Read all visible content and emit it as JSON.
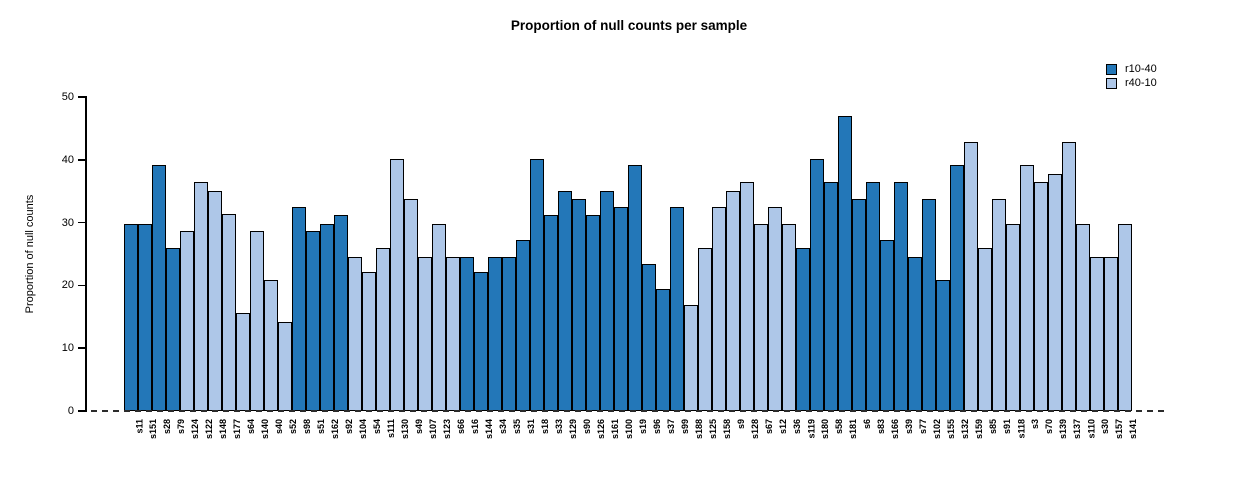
{
  "chart_data": {
    "type": "bar",
    "title": "Proportion of null counts per sample",
    "ylabel": "Proportion of null counts",
    "xlabel": "",
    "ylim": [
      0,
      50
    ],
    "yticks": [
      0,
      10,
      20,
      30,
      40,
      50
    ],
    "grid": false,
    "zero_line_style": "dashed",
    "legend_position": "top-right",
    "legend": [
      {
        "name": "r10-40",
        "color": "#2377b8"
      },
      {
        "name": "r40-10",
        "color": "#aec7e8"
      }
    ],
    "bars": [
      {
        "label": "s11",
        "value": 29.8,
        "series": "r10-40"
      },
      {
        "label": "s151",
        "value": 29.8,
        "series": "r10-40"
      },
      {
        "label": "s28",
        "value": 39.1,
        "series": "r10-40"
      },
      {
        "label": "s79",
        "value": 26.0,
        "series": "r10-40"
      },
      {
        "label": "s124",
        "value": 28.6,
        "series": "r40-10"
      },
      {
        "label": "s122",
        "value": 36.5,
        "series": "r40-10"
      },
      {
        "label": "s148",
        "value": 35.1,
        "series": "r40-10"
      },
      {
        "label": "s177",
        "value": 31.3,
        "series": "r40-10"
      },
      {
        "label": "s64",
        "value": 15.6,
        "series": "r40-10"
      },
      {
        "label": "s140",
        "value": 28.6,
        "series": "r40-10"
      },
      {
        "label": "s40",
        "value": 20.8,
        "series": "r40-10"
      },
      {
        "label": "s52",
        "value": 14.2,
        "series": "r40-10"
      },
      {
        "label": "s98",
        "value": 32.5,
        "series": "r10-40"
      },
      {
        "label": "s51",
        "value": 28.6,
        "series": "r10-40"
      },
      {
        "label": "s162",
        "value": 29.8,
        "series": "r10-40"
      },
      {
        "label": "s92",
        "value": 31.2,
        "series": "r10-40"
      },
      {
        "label": "s104",
        "value": 24.6,
        "series": "r40-10"
      },
      {
        "label": "s54",
        "value": 22.1,
        "series": "r40-10"
      },
      {
        "label": "s111",
        "value": 26.0,
        "series": "r40-10"
      },
      {
        "label": "s130",
        "value": 40.2,
        "series": "r40-10"
      },
      {
        "label": "s49",
        "value": 33.8,
        "series": "r40-10"
      },
      {
        "label": "s107",
        "value": 24.6,
        "series": "r40-10"
      },
      {
        "label": "s123",
        "value": 29.8,
        "series": "r40-10"
      },
      {
        "label": "s66",
        "value": 24.6,
        "series": "r40-10"
      },
      {
        "label": "s16",
        "value": 24.6,
        "series": "r10-40"
      },
      {
        "label": "s144",
        "value": 22.1,
        "series": "r10-40"
      },
      {
        "label": "s34",
        "value": 24.6,
        "series": "r10-40"
      },
      {
        "label": "s35",
        "value": 24.6,
        "series": "r10-40"
      },
      {
        "label": "s31",
        "value": 27.2,
        "series": "r10-40"
      },
      {
        "label": "s18",
        "value": 40.2,
        "series": "r10-40"
      },
      {
        "label": "s33",
        "value": 31.2,
        "series": "r10-40"
      },
      {
        "label": "s129",
        "value": 35.1,
        "series": "r10-40"
      },
      {
        "label": "s90",
        "value": 33.8,
        "series": "r10-40"
      },
      {
        "label": "s126",
        "value": 31.2,
        "series": "r10-40"
      },
      {
        "label": "s161",
        "value": 35.1,
        "series": "r10-40"
      },
      {
        "label": "s100",
        "value": 32.5,
        "series": "r10-40"
      },
      {
        "label": "s19",
        "value": 39.1,
        "series": "r10-40"
      },
      {
        "label": "s96",
        "value": 23.4,
        "series": "r10-40"
      },
      {
        "label": "s37",
        "value": 19.5,
        "series": "r10-40"
      },
      {
        "label": "s99",
        "value": 32.5,
        "series": "r10-40"
      },
      {
        "label": "s188",
        "value": 16.9,
        "series": "r40-10"
      },
      {
        "label": "s125",
        "value": 26.0,
        "series": "r40-10"
      },
      {
        "label": "s158",
        "value": 32.5,
        "series": "r40-10"
      },
      {
        "label": "s9",
        "value": 35.1,
        "series": "r40-10"
      },
      {
        "label": "s128",
        "value": 36.5,
        "series": "r40-10"
      },
      {
        "label": "s67",
        "value": 29.8,
        "series": "r40-10"
      },
      {
        "label": "s12",
        "value": 32.5,
        "series": "r40-10"
      },
      {
        "label": "s36",
        "value": 29.8,
        "series": "r40-10"
      },
      {
        "label": "s119",
        "value": 26.0,
        "series": "r10-40"
      },
      {
        "label": "s180",
        "value": 40.2,
        "series": "r10-40"
      },
      {
        "label": "s58",
        "value": 36.5,
        "series": "r10-40"
      },
      {
        "label": "s181",
        "value": 46.9,
        "series": "r10-40"
      },
      {
        "label": "s6",
        "value": 33.8,
        "series": "r10-40"
      },
      {
        "label": "s83",
        "value": 36.5,
        "series": "r10-40"
      },
      {
        "label": "s166",
        "value": 27.2,
        "series": "r10-40"
      },
      {
        "label": "s39",
        "value": 36.5,
        "series": "r10-40"
      },
      {
        "label": "s77",
        "value": 24.5,
        "series": "r10-40"
      },
      {
        "label": "s102",
        "value": 33.8,
        "series": "r10-40"
      },
      {
        "label": "s155",
        "value": 20.8,
        "series": "r10-40"
      },
      {
        "label": "s132",
        "value": 39.1,
        "series": "r10-40"
      },
      {
        "label": "s159",
        "value": 42.9,
        "series": "r40-10"
      },
      {
        "label": "s85",
        "value": 26.0,
        "series": "r40-10"
      },
      {
        "label": "s91",
        "value": 33.8,
        "series": "r40-10"
      },
      {
        "label": "s118",
        "value": 29.8,
        "series": "r40-10"
      },
      {
        "label": "s3",
        "value": 39.1,
        "series": "r40-10"
      },
      {
        "label": "s70",
        "value": 36.5,
        "series": "r40-10"
      },
      {
        "label": "s139",
        "value": 37.8,
        "series": "r40-10"
      },
      {
        "label": "s137",
        "value": 42.9,
        "series": "r40-10"
      },
      {
        "label": "s110",
        "value": 29.8,
        "series": "r40-10"
      },
      {
        "label": "s30",
        "value": 24.5,
        "series": "r40-10"
      },
      {
        "label": "s157",
        "value": 24.5,
        "series": "r40-10"
      },
      {
        "label": "s141",
        "value": 29.8,
        "series": "r40-10"
      }
    ]
  }
}
